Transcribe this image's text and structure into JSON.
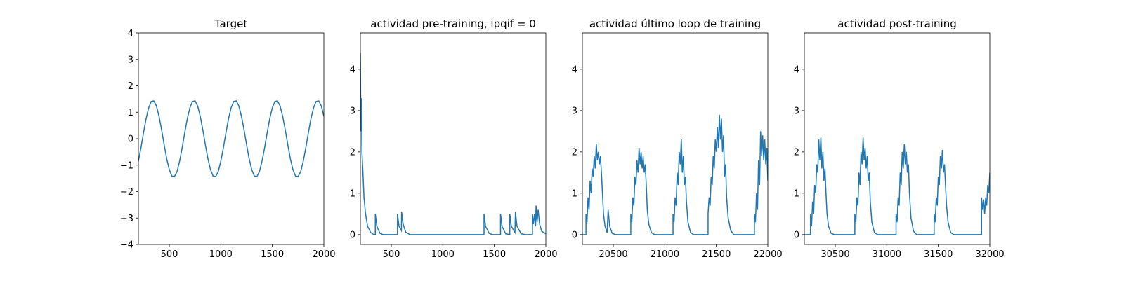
{
  "chart_data": [
    {
      "type": "line",
      "title": "Target",
      "color": "#1f77b4",
      "x": [
        200,
        225,
        250,
        275,
        300,
        325,
        350,
        375,
        400,
        425,
        450,
        475,
        500,
        525,
        550,
        575,
        600,
        625,
        650,
        675,
        700,
        725,
        750,
        775,
        800,
        825,
        850,
        875,
        900,
        925,
        950,
        975,
        1000,
        1025,
        1050,
        1075,
        1100,
        1125,
        1150,
        1175,
        1200,
        1225,
        1250,
        1275,
        1300,
        1325,
        1350,
        1375,
        1400,
        1425,
        1450,
        1475,
        1500,
        1525,
        1550,
        1575,
        1600,
        1625,
        1650,
        1675,
        1700,
        1725,
        1750,
        1775,
        1800,
        1825,
        1850,
        1875,
        1900,
        1925,
        1950,
        1975,
        2000
      ],
      "values": [
        -0.85,
        -0.34,
        0.23,
        0.76,
        1.17,
        1.41,
        1.43,
        1.24,
        0.85,
        0.34,
        -0.23,
        -0.76,
        -1.17,
        -1.41,
        -1.43,
        -1.24,
        -0.85,
        -0.34,
        0.23,
        0.76,
        1.17,
        1.41,
        1.43,
        1.24,
        0.85,
        0.34,
        -0.23,
        -0.76,
        -1.17,
        -1.41,
        -1.43,
        -1.24,
        -0.85,
        -0.34,
        0.23,
        0.76,
        1.17,
        1.41,
        1.43,
        1.24,
        0.85,
        0.34,
        -0.23,
        -0.76,
        -1.17,
        -1.41,
        -1.43,
        -1.24,
        -0.85,
        -0.34,
        0.23,
        0.76,
        1.17,
        1.41,
        1.43,
        1.24,
        0.85,
        0.34,
        -0.23,
        -0.76,
        -1.17,
        -1.41,
        -1.43,
        -1.24,
        -0.85,
        -0.34,
        0.23,
        0.76,
        1.17,
        1.41,
        1.43,
        1.24,
        0.85
      ],
      "xlim": [
        200,
        2000
      ],
      "xticks": [
        500,
        1000,
        1500,
        2000
      ],
      "ylim": [
        -4,
        4
      ],
      "yticks": [
        {
          "value": -4,
          "label": "−4"
        },
        {
          "value": -3,
          "label": "−3"
        },
        {
          "value": -2,
          "label": "−2"
        },
        {
          "value": -1,
          "label": "−1"
        },
        0,
        1,
        2,
        3,
        4
      ]
    },
    {
      "type": "line",
      "title": "actividad pre-training, ipqif = 0",
      "color": "#1f77b4",
      "x": [
        200,
        205,
        210,
        215,
        225,
        235,
        250,
        270,
        300,
        330,
        345,
        345,
        360,
        390,
        420,
        560,
        560,
        575,
        598,
        600,
        615,
        640,
        680,
        1400,
        1400,
        1415,
        1450,
        1480,
        1560,
        1560,
        1575,
        1610,
        1650,
        1650,
        1665,
        1700,
        1705,
        1720,
        1760,
        1800,
        1870,
        1870,
        1880,
        1890,
        1900,
        1905,
        1915,
        1925,
        1940,
        1960,
        1980,
        2000
      ],
      "values": [
        4.4,
        2.5,
        3.3,
        2.0,
        1.5,
        0.9,
        0.5,
        0.2,
        0.05,
        0,
        0,
        0.5,
        0.2,
        0.03,
        0,
        0,
        0.5,
        0.2,
        0.1,
        0.55,
        0.25,
        0.06,
        0,
        0,
        0.5,
        0.2,
        0.03,
        0,
        0,
        0.5,
        0.2,
        0.02,
        0,
        0.5,
        0.2,
        0.05,
        0.55,
        0.2,
        0.02,
        0,
        0,
        0.5,
        0.25,
        0.5,
        0.2,
        0.7,
        0.3,
        0.6,
        0.25,
        0.08,
        0.05,
        0.02
      ],
      "xlim": [
        200,
        2000
      ],
      "xticks": [
        500,
        1000,
        1500,
        2000
      ],
      "ylim": [
        -0.24,
        4.88
      ],
      "yticks": [
        0,
        1,
        2,
        3,
        4
      ]
    },
    {
      "type": "line",
      "title": "actividad último loop de training",
      "color": "#1f77b4",
      "x": [
        20200,
        20235,
        20235,
        20245,
        20255,
        20265,
        20275,
        20285,
        20295,
        20305,
        20315,
        20325,
        20335,
        20345,
        20355,
        20365,
        20375,
        20385,
        20395,
        20405,
        20420,
        20440,
        20450,
        20465,
        20490,
        20520,
        20670,
        20670,
        20680,
        20690,
        20700,
        20710,
        20720,
        20730,
        20740,
        20750,
        20760,
        20770,
        20780,
        20790,
        20800,
        20810,
        20820,
        20830,
        20845,
        20870,
        20900,
        21080,
        21080,
        21090,
        21100,
        21110,
        21120,
        21130,
        21140,
        21150,
        21160,
        21170,
        21180,
        21190,
        21200,
        21210,
        21225,
        21250,
        21280,
        21420,
        21420,
        21430,
        21440,
        21450,
        21460,
        21470,
        21480,
        21490,
        21500,
        21510,
        21520,
        21530,
        21540,
        21550,
        21560,
        21570,
        21580,
        21590,
        21600,
        21615,
        21640,
        21670,
        21870,
        21870,
        21880,
        21890,
        21900,
        21910,
        21920,
        21930,
        21940,
        21950,
        21960,
        21970,
        21980,
        21990,
        22000
      ],
      "values": [
        0,
        0,
        0.5,
        0.3,
        0.9,
        0.6,
        1.3,
        1.0,
        1.6,
        1.4,
        1.9,
        1.6,
        2.2,
        1.8,
        2.0,
        1.7,
        1.9,
        1.5,
        1.0,
        0.5,
        0.2,
        0.05,
        0.6,
        0.2,
        0.03,
        0,
        0,
        0.5,
        0.3,
        0.9,
        0.7,
        1.4,
        1.2,
        1.8,
        1.5,
        2.1,
        1.7,
        2.0,
        1.6,
        1.9,
        1.5,
        1.7,
        1.2,
        0.6,
        0.25,
        0.05,
        0,
        0,
        0.5,
        0.3,
        0.9,
        0.7,
        1.5,
        1.2,
        2.0,
        1.7,
        2.3,
        1.5,
        1.9,
        1.2,
        1.4,
        0.8,
        0.3,
        0.05,
        0,
        0,
        0.5,
        0.9,
        0.7,
        1.4,
        1.2,
        1.9,
        1.6,
        2.3,
        2.0,
        2.6,
        2.1,
        2.9,
        2.3,
        2.8,
        2.0,
        2.4,
        1.4,
        1.7,
        0.9,
        0.4,
        0.1,
        0,
        0,
        0.5,
        0.3,
        1.0,
        0.6,
        1.8,
        1.2,
        2.5,
        1.9,
        2.4,
        1.8,
        2.3,
        1.7,
        2.1,
        1.3
      ],
      "xlim": [
        20200,
        22000
      ],
      "xticks": [
        20500,
        21000,
        21500,
        22000
      ],
      "ylim": [
        -0.24,
        4.88
      ],
      "yticks": [
        0,
        1,
        2,
        3,
        4
      ]
    },
    {
      "type": "line",
      "title": "actividad post-training",
      "color": "#1f77b4",
      "x": [
        30200,
        30260,
        30260,
        30270,
        30280,
        30290,
        30300,
        30310,
        30320,
        30330,
        30340,
        30350,
        30360,
        30370,
        30380,
        30390,
        30400,
        30410,
        30420,
        30435,
        30460,
        30490,
        30690,
        30690,
        30700,
        30710,
        30720,
        30730,
        30740,
        30750,
        30760,
        30770,
        30780,
        30790,
        30800,
        30810,
        30820,
        30830,
        30840,
        30855,
        30880,
        30910,
        31090,
        31090,
        31100,
        31110,
        31120,
        31130,
        31140,
        31150,
        31160,
        31170,
        31180,
        31190,
        31200,
        31210,
        31220,
        31235,
        31260,
        31290,
        31460,
        31460,
        31470,
        31480,
        31490,
        31500,
        31510,
        31520,
        31530,
        31540,
        31550,
        31560,
        31570,
        31580,
        31595,
        31620,
        31650,
        31920,
        31920,
        31930,
        31940,
        31950,
        31960,
        31970,
        31980,
        31990,
        32000
      ],
      "values": [
        0,
        0,
        0.5,
        0.2,
        0.8,
        0.5,
        1.2,
        1.0,
        1.7,
        1.5,
        2.3,
        1.8,
        2.35,
        1.6,
        2.0,
        1.3,
        1.6,
        1.0,
        0.5,
        0.2,
        0.03,
        0,
        0,
        0.5,
        0.3,
        0.9,
        0.7,
        1.5,
        1.2,
        2.0,
        1.7,
        2.35,
        1.8,
        2.1,
        1.6,
        1.9,
        1.3,
        1.5,
        0.8,
        0.3,
        0.05,
        0,
        0,
        0.5,
        0.3,
        0.9,
        0.7,
        1.5,
        1.2,
        2.0,
        1.6,
        2.2,
        1.7,
        2.0,
        1.5,
        1.7,
        1.0,
        0.4,
        0.08,
        0,
        0,
        0.5,
        0.3,
        0.9,
        0.7,
        1.4,
        1.2,
        1.9,
        1.6,
        2.05,
        1.5,
        1.7,
        1.2,
        0.7,
        0.3,
        0.05,
        0,
        0,
        0.9,
        0.6,
        0.85,
        0.5,
        0.9,
        0.7,
        1.2,
        1.0,
        1.5
      ],
      "xlim": [
        30200,
        32000
      ],
      "xticks": [
        30500,
        31000,
        31500,
        32000
      ],
      "ylim": [
        -0.24,
        4.88
      ],
      "yticks": [
        0,
        1,
        2,
        3,
        4
      ]
    }
  ]
}
